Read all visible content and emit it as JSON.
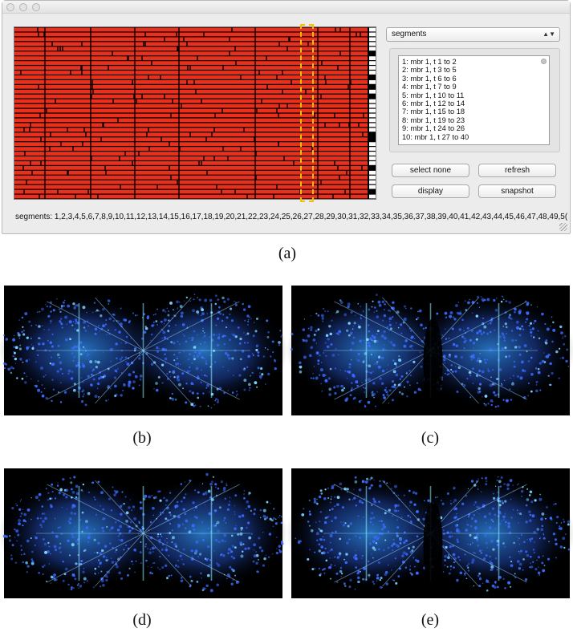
{
  "figure": {
    "captions": [
      "(a)",
      "(b)",
      "(c)",
      "(d)",
      "(e)"
    ]
  },
  "window": {
    "dropdown": {
      "selected": "segments",
      "arrows_icon": "up-down-arrows-icon"
    },
    "segment_list": [
      "1: mbr 1, t 1 to 2",
      "2: mbr 1, t 3 to 5",
      "3: mbr 1, t 6 to 6",
      "4: mbr 1, t 7 to 9",
      "5: mbr 1, t 10 to 11",
      "6: mbr 1, t 12 to 14",
      "7: mbr 1, t 15 to 18",
      "8: mbr 1, t 19 to 23",
      "9: mbr 1, t 24 to 26",
      "10: mbr 1, t 27 to 40"
    ],
    "buttons": {
      "select_none": "select none",
      "refresh": "refresh",
      "display": "display",
      "snapshot": "snapshot"
    },
    "segments_text": "segments: 1,2,3,4,5,6,7,8,9,10,11,12,13,14,15,16,17,18,19,20,21,22,23,24,25,26,27,28,29,30,31,32,33,34,35,36,37,38,39,40,41,42,43,44,45,46,47,48,49,5(",
    "colors": {
      "segment_fill": "#e8301c",
      "segment_border": "#000000",
      "selection_marker": "#f2c200",
      "render_background": "#000000",
      "render_points": "#3a6cff"
    }
  }
}
